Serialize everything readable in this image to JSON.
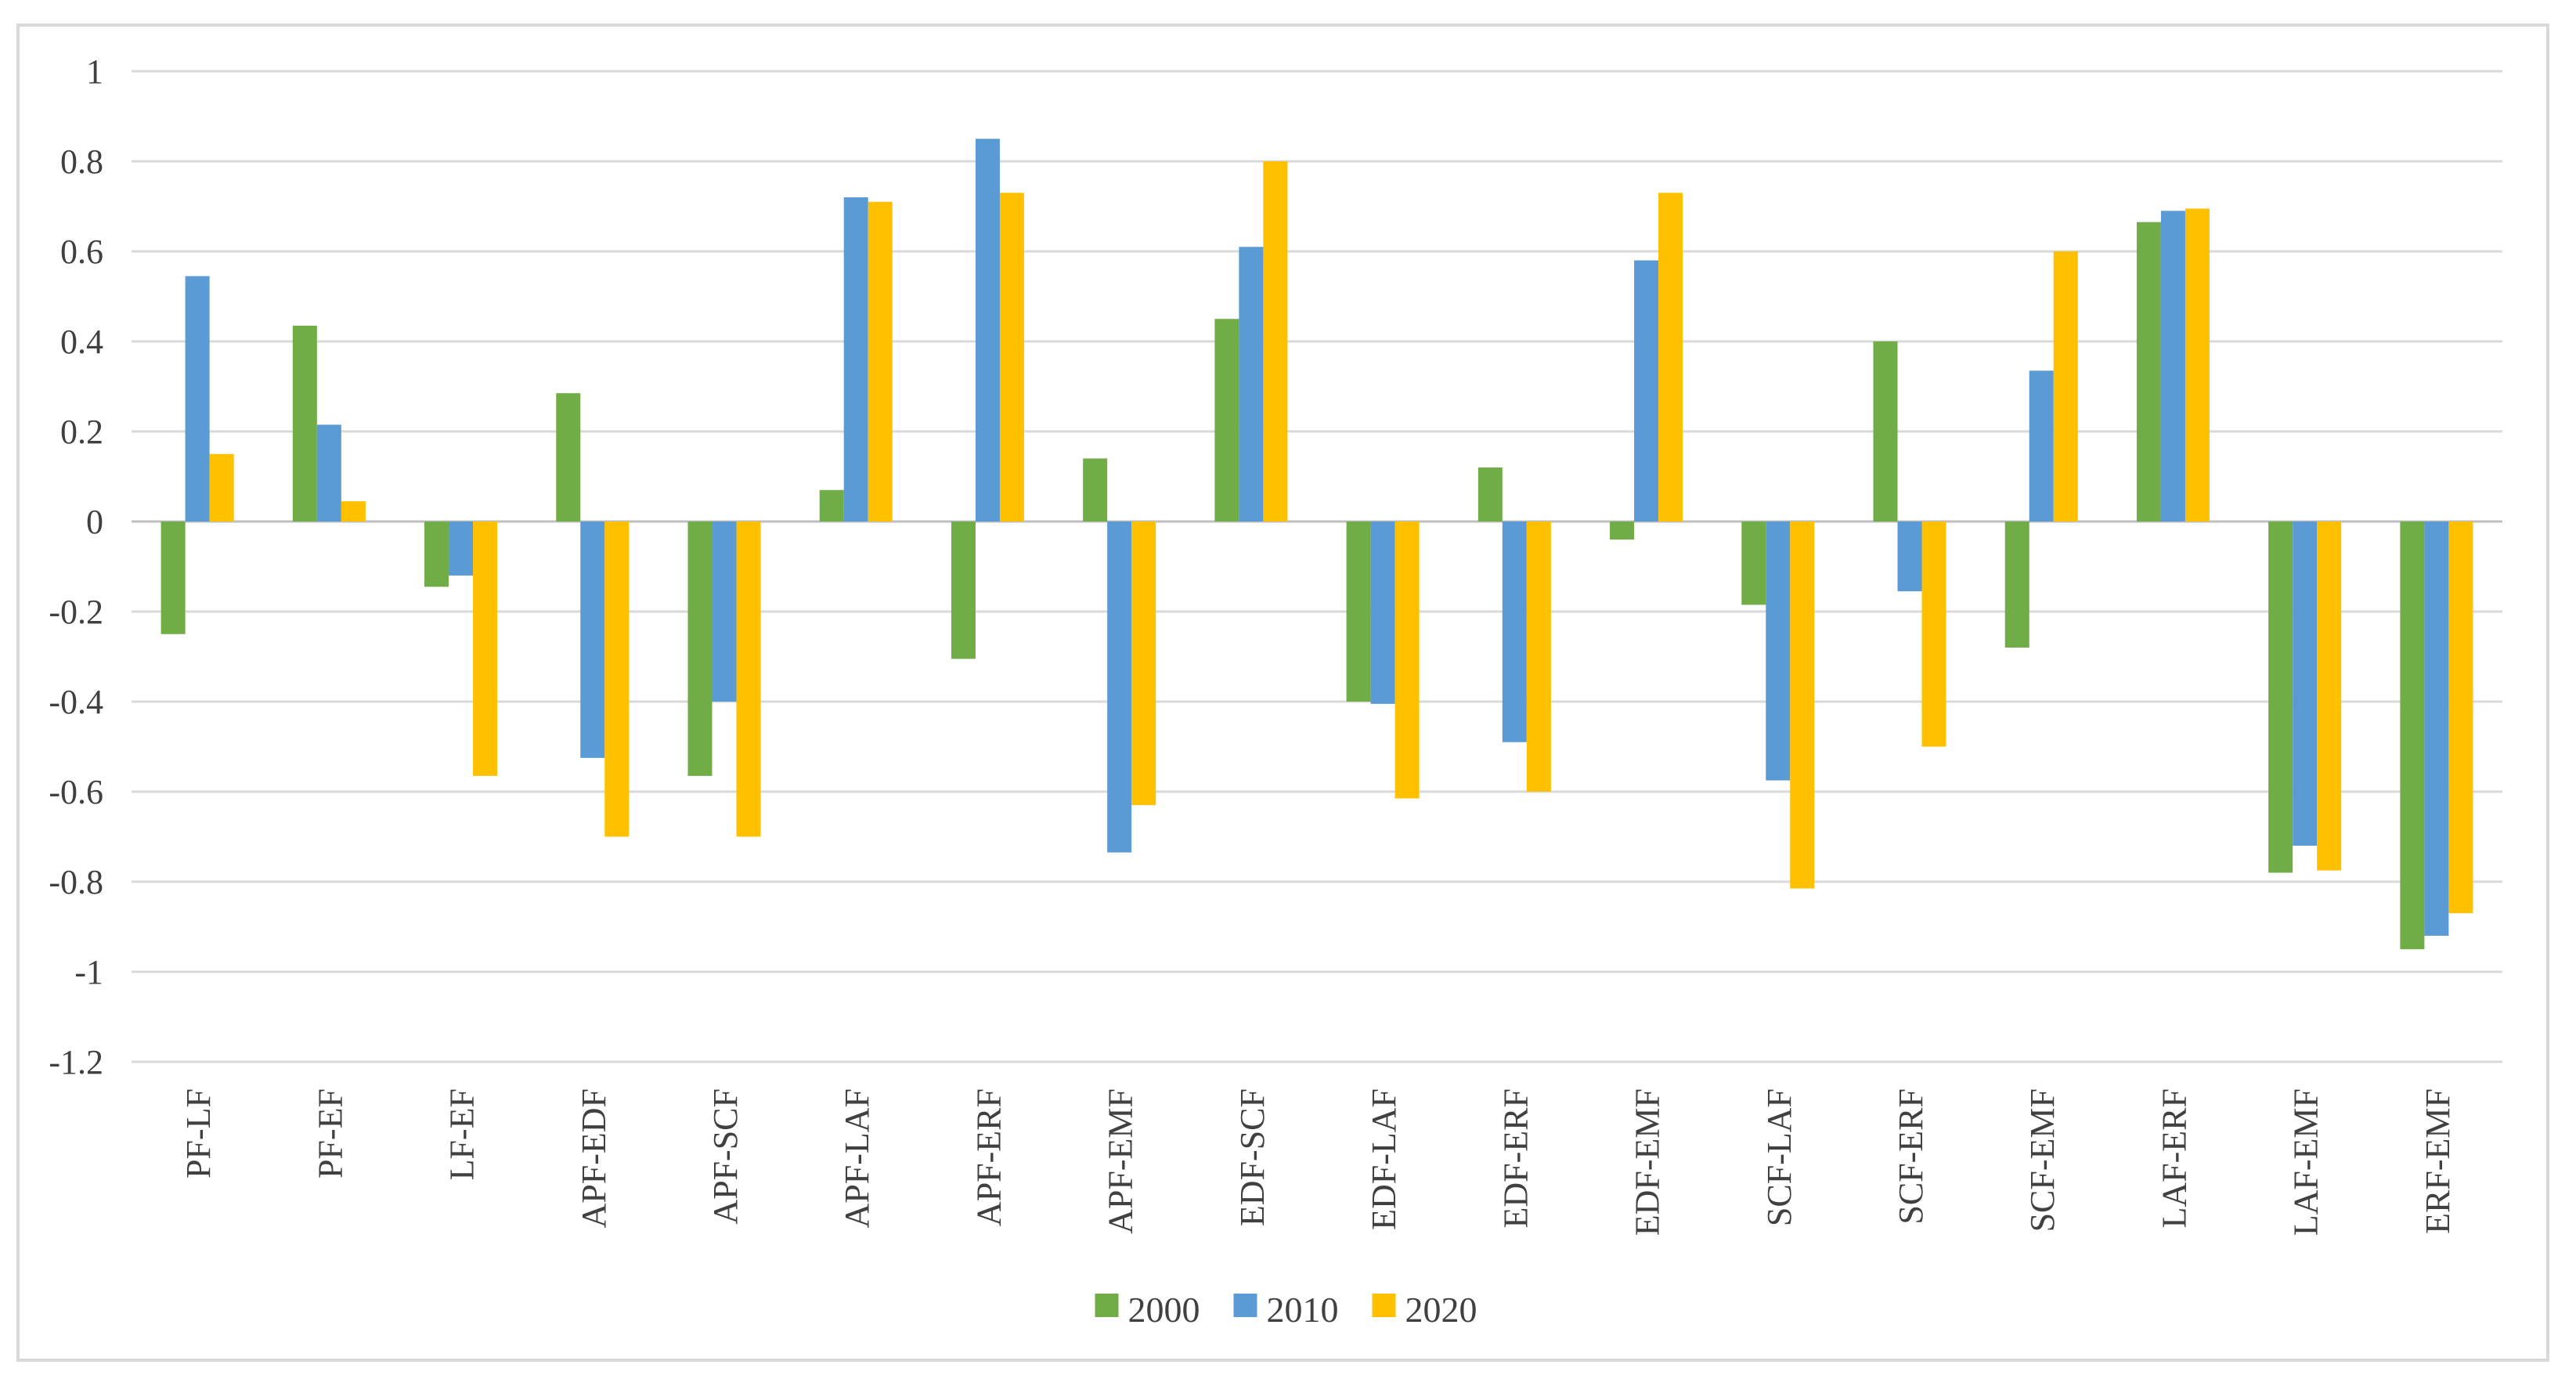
{
  "figure": {
    "background": "#ffffff",
    "border_color": "#d9d9d9",
    "text_color": "#404040",
    "gridline_color": "#d9d9d9",
    "axis_line_color": "#bfbfbf"
  },
  "chart_data": {
    "type": "bar",
    "title": "",
    "xlabel": "",
    "ylabel": "",
    "categories": [
      "PF-LF",
      "PF-EF",
      "LF-EF",
      "APF-EDF",
      "APF-SCF",
      "APF-LAF",
      "APF-ERF",
      "APF-EMF",
      "EDF-SCF",
      "EDF-LAF",
      "EDF-ERF",
      "EDF-EMF",
      "SCF-LAF",
      "SCF-ERF",
      "SCF-EMF",
      "LAF-ERF",
      "LAF-EMF",
      "ERF-EMF"
    ],
    "series": [
      {
        "name": "2000",
        "color": "#70AD47",
        "values": [
          -0.25,
          0.435,
          -0.145,
          0.285,
          -0.565,
          0.07,
          -0.305,
          0.14,
          0.45,
          -0.4,
          0.12,
          -0.04,
          -0.185,
          0.4,
          -0.28,
          0.665,
          -0.78,
          -0.95
        ]
      },
      {
        "name": "2010",
        "color": "#5B9BD5",
        "values": [
          0.545,
          0.215,
          -0.12,
          -0.525,
          -0.4,
          0.72,
          0.85,
          -0.735,
          0.61,
          -0.405,
          -0.49,
          0.58,
          -0.575,
          -0.155,
          0.335,
          0.69,
          -0.72,
          -0.92
        ]
      },
      {
        "name": "2020",
        "color": "#FFC000",
        "values": [
          0.15,
          0.045,
          -0.565,
          -0.7,
          -0.7,
          0.71,
          0.73,
          -0.63,
          0.8,
          -0.615,
          -0.6,
          0.73,
          -0.815,
          -0.5,
          0.6,
          0.695,
          -0.775,
          -0.87
        ]
      }
    ],
    "ylim": [
      -1.2,
      1.0
    ],
    "ytick_step": 0.2,
    "ytick_labels": [
      "1",
      "0.8",
      "0.6",
      "0.4",
      "0.2",
      "0",
      "-0.2",
      "-0.4",
      "-0.6",
      "-0.8",
      "-1",
      "-1.2"
    ],
    "grid": true,
    "legend_position": "bottom-center"
  }
}
